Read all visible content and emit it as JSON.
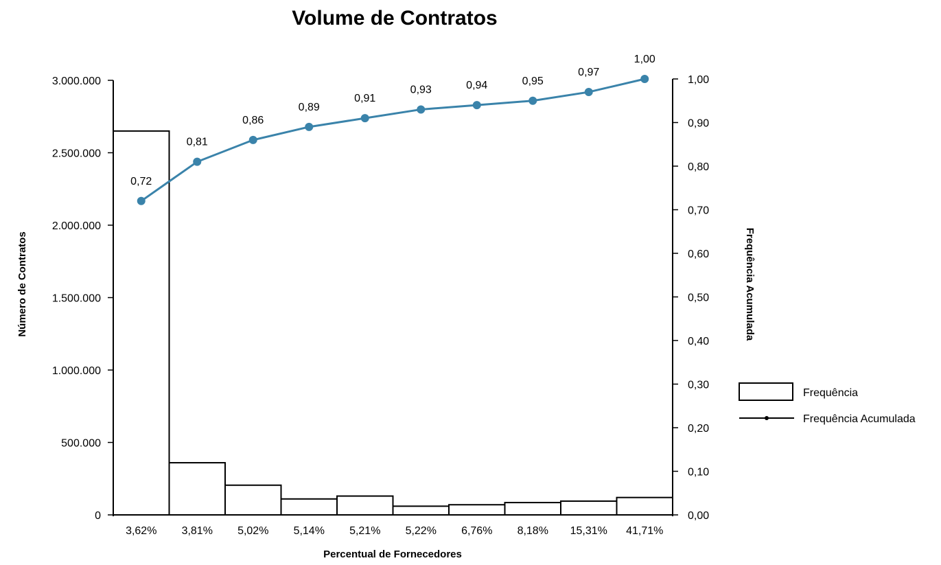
{
  "chart_data": {
    "type": "bar",
    "title": "Volume de Contratos",
    "xlabel": "Percentual de Fornecedores",
    "ylabel": "Número de Contratos",
    "y2label": "Frequência Acumulada",
    "categories": [
      "3,62%",
      "3,81%",
      "5,02%",
      "5,14%",
      "5,21%",
      "5,22%",
      "6,76%",
      "8,18%",
      "15,31%",
      "41,71%"
    ],
    "ylim": [
      0,
      3000000
    ],
    "y2lim": [
      0,
      1.0
    ],
    "yticks": [
      "0",
      "500.000",
      "1.000.000",
      "1.500.000",
      "2.000.000",
      "2.500.000",
      "3.000.000"
    ],
    "y2ticks": [
      "0,00",
      "0,10",
      "0,20",
      "0,30",
      "0,40",
      "0,50",
      "0,60",
      "0,70",
      "0,80",
      "0,90",
      "1,00"
    ],
    "series": [
      {
        "name": "Frequência",
        "type": "bar",
        "values": [
          2650000,
          360000,
          205000,
          110000,
          130000,
          60000,
          70000,
          85000,
          95000,
          120000
        ]
      },
      {
        "name": "Frequência Acumulada",
        "type": "line",
        "axis": "right",
        "values": [
          0.72,
          0.81,
          0.86,
          0.89,
          0.91,
          0.93,
          0.94,
          0.95,
          0.97,
          1.0
        ],
        "labels": [
          "0,72",
          "0,81",
          "0,86",
          "0,89",
          "0,91",
          "0,93",
          "0,94",
          "0,95",
          "0,97",
          "1,00"
        ],
        "color": "#3a83aa"
      }
    ],
    "grid": false,
    "legend_position": "right"
  }
}
